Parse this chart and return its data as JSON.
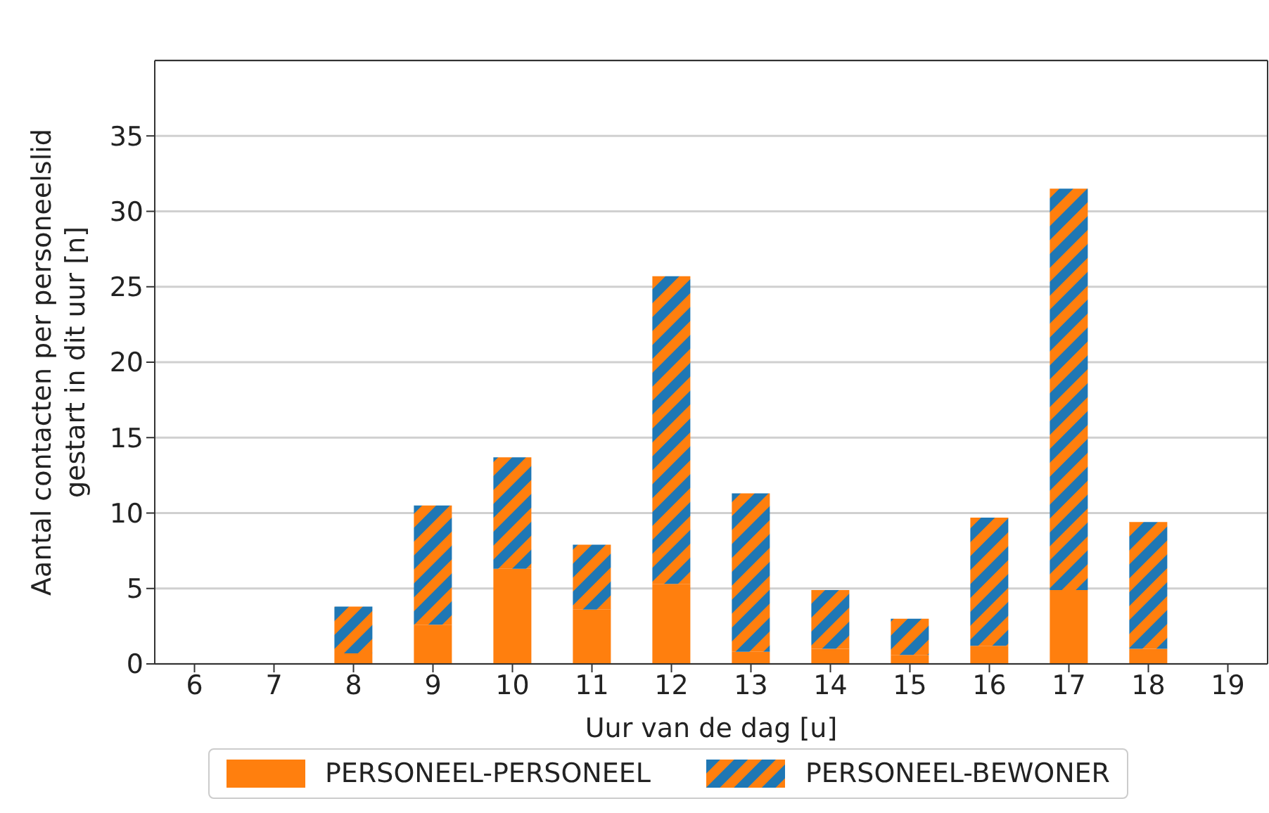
{
  "chart_data": {
    "type": "bar",
    "stacked": true,
    "xlabel": "Uur van de dag [u]",
    "ylabel": "Aantal contacten per personeelslid gestart in dit uur [n]",
    "categories": [
      "6",
      "7",
      "8",
      "9",
      "10",
      "11",
      "12",
      "13",
      "14",
      "15",
      "16",
      "17",
      "18",
      "19"
    ],
    "series": [
      {
        "name": "PERSONEEL-PERSONEEL",
        "color": "#ff7f0e",
        "values": [
          0,
          0,
          0.7,
          2.6,
          6.3,
          3.6,
          5.3,
          0.8,
          1.0,
          0.6,
          1.2,
          4.9,
          1.0,
          0
        ]
      },
      {
        "name": "PERSONEEL-BEWONER",
        "color": "#1f77b4",
        "values": [
          0,
          0,
          3.1,
          7.9,
          7.4,
          4.3,
          20.4,
          10.5,
          3.9,
          2.4,
          8.5,
          26.6,
          8.4,
          0
        ]
      }
    ],
    "ylim": [
      0,
      40
    ],
    "yticks": [
      0,
      5,
      10,
      15,
      20,
      25,
      30,
      35
    ],
    "grid": "y",
    "legend": "bottom"
  }
}
